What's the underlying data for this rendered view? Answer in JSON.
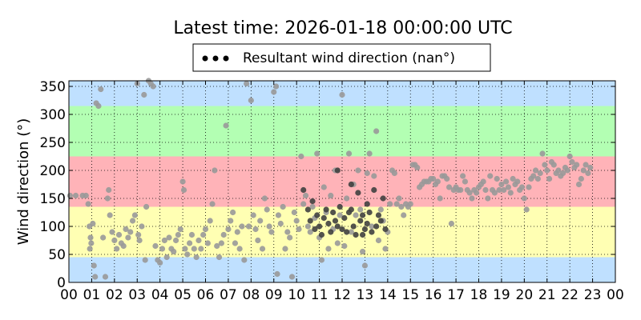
{
  "chart_data": {
    "type": "scatter",
    "title": "Latest time: 2026-01-18 00:00:00 UTC",
    "xlabel": "",
    "ylabel": "Wind direction (°)",
    "xlim": [
      0,
      24
    ],
    "ylim": [
      0,
      360
    ],
    "x_ticks": [
      0,
      1,
      2,
      3,
      4,
      5,
      6,
      7,
      8,
      9,
      10,
      11,
      12,
      13,
      14,
      15,
      16,
      17,
      18,
      19,
      20,
      21,
      22,
      23,
      24
    ],
    "x_tick_labels": [
      "00",
      "01",
      "02",
      "03",
      "04",
      "05",
      "06",
      "07",
      "08",
      "09",
      "10",
      "11",
      "12",
      "13",
      "14",
      "15",
      "16",
      "17",
      "18",
      "19",
      "20",
      "21",
      "22",
      "23",
      "00"
    ],
    "y_ticks": [
      0,
      50,
      100,
      150,
      200,
      250,
      300,
      350
    ],
    "y_tick_labels": [
      "0",
      "50",
      "100",
      "150",
      "200",
      "250",
      "300",
      "350"
    ],
    "grid": true,
    "legend": {
      "position": "top-center",
      "entries": [
        "Resultant wind direction (nan°)"
      ]
    },
    "bands": [
      {
        "from": 0,
        "to": 45,
        "color": "#bfe0ff"
      },
      {
        "from": 45,
        "to": 135,
        "color": "#ffffb3"
      },
      {
        "from": 135,
        "to": 225,
        "color": "#ffb3b8"
      },
      {
        "from": 225,
        "to": 315,
        "color": "#b3ffb3"
      },
      {
        "from": 315,
        "to": 360,
        "color": "#bfe0ff"
      }
    ],
    "series": [
      {
        "name": "Resultant wind direction (nan°)",
        "color": "#999999",
        "points": [
          [
            0.05,
            155
          ],
          [
            0.3,
            155
          ],
          [
            0.6,
            155
          ],
          [
            0.75,
            155
          ],
          [
            0.85,
            140
          ],
          [
            0.9,
            100
          ],
          [
            0.95,
            80
          ],
          [
            0.92,
            60
          ],
          [
            0.98,
            70
          ],
          [
            1.05,
            105
          ],
          [
            1.1,
            30
          ],
          [
            1.15,
            10
          ],
          [
            1.2,
            320
          ],
          [
            1.3,
            315
          ],
          [
            1.4,
            345
          ],
          [
            1.5,
            80
          ],
          [
            1.6,
            10
          ],
          [
            1.7,
            150
          ],
          [
            1.75,
            165
          ],
          [
            1.8,
            120
          ],
          [
            1.9,
            90
          ],
          [
            2.0,
            75
          ],
          [
            2.1,
            60
          ],
          [
            2.2,
            85
          ],
          [
            2.3,
            70
          ],
          [
            2.4,
            65
          ],
          [
            2.5,
            95
          ],
          [
            2.6,
            80
          ],
          [
            2.7,
            90
          ],
          [
            2.8,
            110
          ],
          [
            2.9,
            120
          ],
          [
            3.0,
            355
          ],
          [
            3.05,
            85
          ],
          [
            3.1,
            75
          ],
          [
            3.2,
            100
          ],
          [
            3.3,
            335
          ],
          [
            3.35,
            40
          ],
          [
            3.4,
            135
          ],
          [
            3.5,
            360
          ],
          [
            3.6,
            355
          ],
          [
            3.7,
            350
          ],
          [
            3.8,
            65
          ],
          [
            3.9,
            40
          ],
          [
            4.0,
            35
          ],
          [
            4.1,
            60
          ],
          [
            4.2,
            75
          ],
          [
            4.3,
            45
          ],
          [
            4.4,
            80
          ],
          [
            4.5,
            60
          ],
          [
            4.6,
            55
          ],
          [
            4.7,
            75
          ],
          [
            4.8,
            85
          ],
          [
            4.9,
            95
          ],
          [
            5.0,
            180
          ],
          [
            5.05,
            165
          ],
          [
            5.1,
            60
          ],
          [
            5.2,
            50
          ],
          [
            5.3,
            70
          ],
          [
            5.4,
            85
          ],
          [
            5.5,
            60
          ],
          [
            5.6,
            45
          ],
          [
            5.7,
            75
          ],
          [
            5.8,
            60
          ],
          [
            5.9,
            85
          ],
          [
            6.0,
            95
          ],
          [
            6.1,
            70
          ],
          [
            6.2,
            110
          ],
          [
            6.3,
            140
          ],
          [
            6.4,
            200
          ],
          [
            6.5,
            65
          ],
          [
            6.6,
            45
          ],
          [
            6.7,
            70
          ],
          [
            6.8,
            85
          ],
          [
            6.9,
            280
          ],
          [
            7.0,
            95
          ],
          [
            7.1,
            110
          ],
          [
            7.2,
            125
          ],
          [
            7.3,
            70
          ],
          [
            7.4,
            90
          ],
          [
            7.5,
            60
          ],
          [
            7.6,
            100
          ],
          [
            7.7,
            40
          ],
          [
            7.8,
            355
          ],
          [
            7.9,
            100
          ],
          [
            8.0,
            325
          ],
          [
            8.1,
            120
          ],
          [
            8.2,
            95
          ],
          [
            8.3,
            75
          ],
          [
            8.4,
            110
          ],
          [
            8.5,
            60
          ],
          [
            8.6,
            150
          ],
          [
            8.7,
            130
          ],
          [
            8.8,
            100
          ],
          [
            8.9,
            90
          ],
          [
            9.0,
            340
          ],
          [
            9.1,
            350
          ],
          [
            9.15,
            15
          ],
          [
            9.2,
            120
          ],
          [
            9.3,
            105
          ],
          [
            9.4,
            135
          ],
          [
            9.5,
            60
          ],
          [
            9.6,
            90
          ],
          [
            9.7,
            80
          ],
          [
            9.8,
            10
          ],
          [
            9.9,
            125
          ],
          [
            10.0,
            110
          ],
          [
            10.1,
            95
          ],
          [
            10.2,
            225
          ],
          [
            10.3,
            140
          ],
          [
            10.4,
            155
          ],
          [
            10.5,
            100
          ],
          [
            10.6,
            90
          ],
          [
            10.7,
            135
          ],
          [
            10.8,
            115
          ],
          [
            10.9,
            230
          ],
          [
            11.0,
            80
          ],
          [
            11.1,
            40
          ],
          [
            11.2,
            170
          ],
          [
            11.3,
            125
          ],
          [
            11.4,
            60
          ],
          [
            11.5,
            155
          ],
          [
            11.6,
            95
          ],
          [
            11.7,
            200
          ],
          [
            11.8,
            70
          ],
          [
            11.9,
            120
          ],
          [
            12.0,
            335
          ],
          [
            12.1,
            65
          ],
          [
            12.2,
            150
          ],
          [
            12.3,
            230
          ],
          [
            12.4,
            90
          ],
          [
            12.5,
            175
          ],
          [
            12.6,
            120
          ],
          [
            12.7,
            200
          ],
          [
            12.8,
            130
          ],
          [
            12.9,
            55
          ],
          [
            13.0,
            30
          ],
          [
            13.1,
            195
          ],
          [
            13.2,
            230
          ],
          [
            13.3,
            100
          ],
          [
            13.4,
            190
          ],
          [
            13.5,
            270
          ],
          [
            13.6,
            75
          ],
          [
            13.7,
            130
          ],
          [
            13.8,
            110
          ],
          [
            13.9,
            60
          ],
          [
            14.0,
            90
          ],
          [
            14.1,
            140
          ],
          [
            14.2,
            200
          ],
          [
            14.3,
            195
          ],
          [
            14.4,
            140
          ],
          [
            14.5,
            150
          ],
          [
            14.6,
            135
          ],
          [
            14.7,
            120
          ],
          [
            14.8,
            140
          ],
          [
            14.9,
            135
          ],
          [
            15.0,
            140
          ],
          [
            15.1,
            210
          ],
          [
            15.2,
            210
          ],
          [
            15.3,
            205
          ],
          [
            15.4,
            170
          ],
          [
            15.5,
            175
          ],
          [
            15.6,
            180
          ],
          [
            15.7,
            180
          ],
          [
            15.8,
            180
          ],
          [
            15.9,
            185
          ],
          [
            16.0,
            185
          ],
          [
            16.1,
            175
          ],
          [
            16.2,
            180
          ],
          [
            16.3,
            150
          ],
          [
            16.4,
            190
          ],
          [
            16.5,
            190
          ],
          [
            16.6,
            185
          ],
          [
            16.7,
            170
          ],
          [
            16.8,
            105
          ],
          [
            16.9,
            165
          ],
          [
            17.0,
            170
          ],
          [
            17.1,
            165
          ],
          [
            17.2,
            165
          ],
          [
            17.3,
            190
          ],
          [
            17.4,
            180
          ],
          [
            17.5,
            165
          ],
          [
            17.6,
            160
          ],
          [
            17.7,
            150
          ],
          [
            17.8,
            165
          ],
          [
            17.9,
            160
          ],
          [
            18.0,
            170
          ],
          [
            18.1,
            175
          ],
          [
            18.2,
            180
          ],
          [
            18.3,
            165
          ],
          [
            18.4,
            150
          ],
          [
            18.5,
            190
          ],
          [
            18.6,
            165
          ],
          [
            18.7,
            160
          ],
          [
            18.8,
            185
          ],
          [
            18.9,
            165
          ],
          [
            19.0,
            175
          ],
          [
            19.1,
            165
          ],
          [
            19.2,
            180
          ],
          [
            19.3,
            170
          ],
          [
            19.4,
            160
          ],
          [
            19.5,
            185
          ],
          [
            19.6,
            175
          ],
          [
            19.7,
            180
          ],
          [
            19.8,
            165
          ],
          [
            19.9,
            170
          ],
          [
            20.0,
            150
          ],
          [
            20.1,
            130
          ],
          [
            20.2,
            170
          ],
          [
            20.3,
            185
          ],
          [
            20.4,
            190
          ],
          [
            20.5,
            200
          ],
          [
            20.6,
            185
          ],
          [
            20.7,
            195
          ],
          [
            20.8,
            230
          ],
          [
            20.9,
            210
          ],
          [
            21.0,
            200
          ],
          [
            21.1,
            185
          ],
          [
            21.2,
            215
          ],
          [
            21.3,
            210
          ],
          [
            21.4,
            195
          ],
          [
            21.5,
            200
          ],
          [
            21.6,
            190
          ],
          [
            21.7,
            195
          ],
          [
            21.8,
            205
          ],
          [
            21.9,
            200
          ],
          [
            22.0,
            225
          ],
          [
            22.1,
            215
          ],
          [
            22.2,
            205
          ],
          [
            22.3,
            210
          ],
          [
            22.4,
            175
          ],
          [
            22.5,
            185
          ],
          [
            22.6,
            200
          ],
          [
            22.7,
            210
          ],
          [
            22.8,
            195
          ],
          [
            22.9,
            205
          ]
        ]
      },
      {
        "name": "",
        "color": "#404040",
        "points": [
          [
            10.3,
            165
          ],
          [
            10.5,
            130
          ],
          [
            10.6,
            110
          ],
          [
            10.8,
            95
          ],
          [
            10.9,
            120
          ],
          [
            11.0,
            100
          ],
          [
            11.1,
            85
          ],
          [
            11.2,
            115
          ],
          [
            11.3,
            130
          ],
          [
            11.4,
            105
          ],
          [
            11.5,
            90
          ],
          [
            11.6,
            125
          ],
          [
            11.7,
            110
          ],
          [
            11.8,
            100
          ],
          [
            11.9,
            135
          ],
          [
            12.0,
            95
          ],
          [
            12.1,
            115
          ],
          [
            12.2,
            90
          ],
          [
            12.3,
            125
          ],
          [
            12.4,
            130
          ],
          [
            12.5,
            100
          ],
          [
            12.6,
            85
          ],
          [
            12.7,
            160
          ],
          [
            12.8,
            110
          ],
          [
            12.9,
            120
          ],
          [
            13.0,
            95
          ],
          [
            13.1,
            105
          ],
          [
            13.2,
            125
          ],
          [
            13.3,
            90
          ],
          [
            13.4,
            165
          ],
          [
            13.5,
            100
          ],
          [
            13.6,
            120
          ],
          [
            13.7,
            110
          ],
          [
            13.8,
            150
          ],
          [
            13.9,
            95
          ],
          [
            11.8,
            200
          ],
          [
            12.4,
            175
          ],
          [
            13.1,
            140
          ],
          [
            10.7,
            145
          ],
          [
            12.9,
            85
          ]
        ]
      }
    ]
  }
}
